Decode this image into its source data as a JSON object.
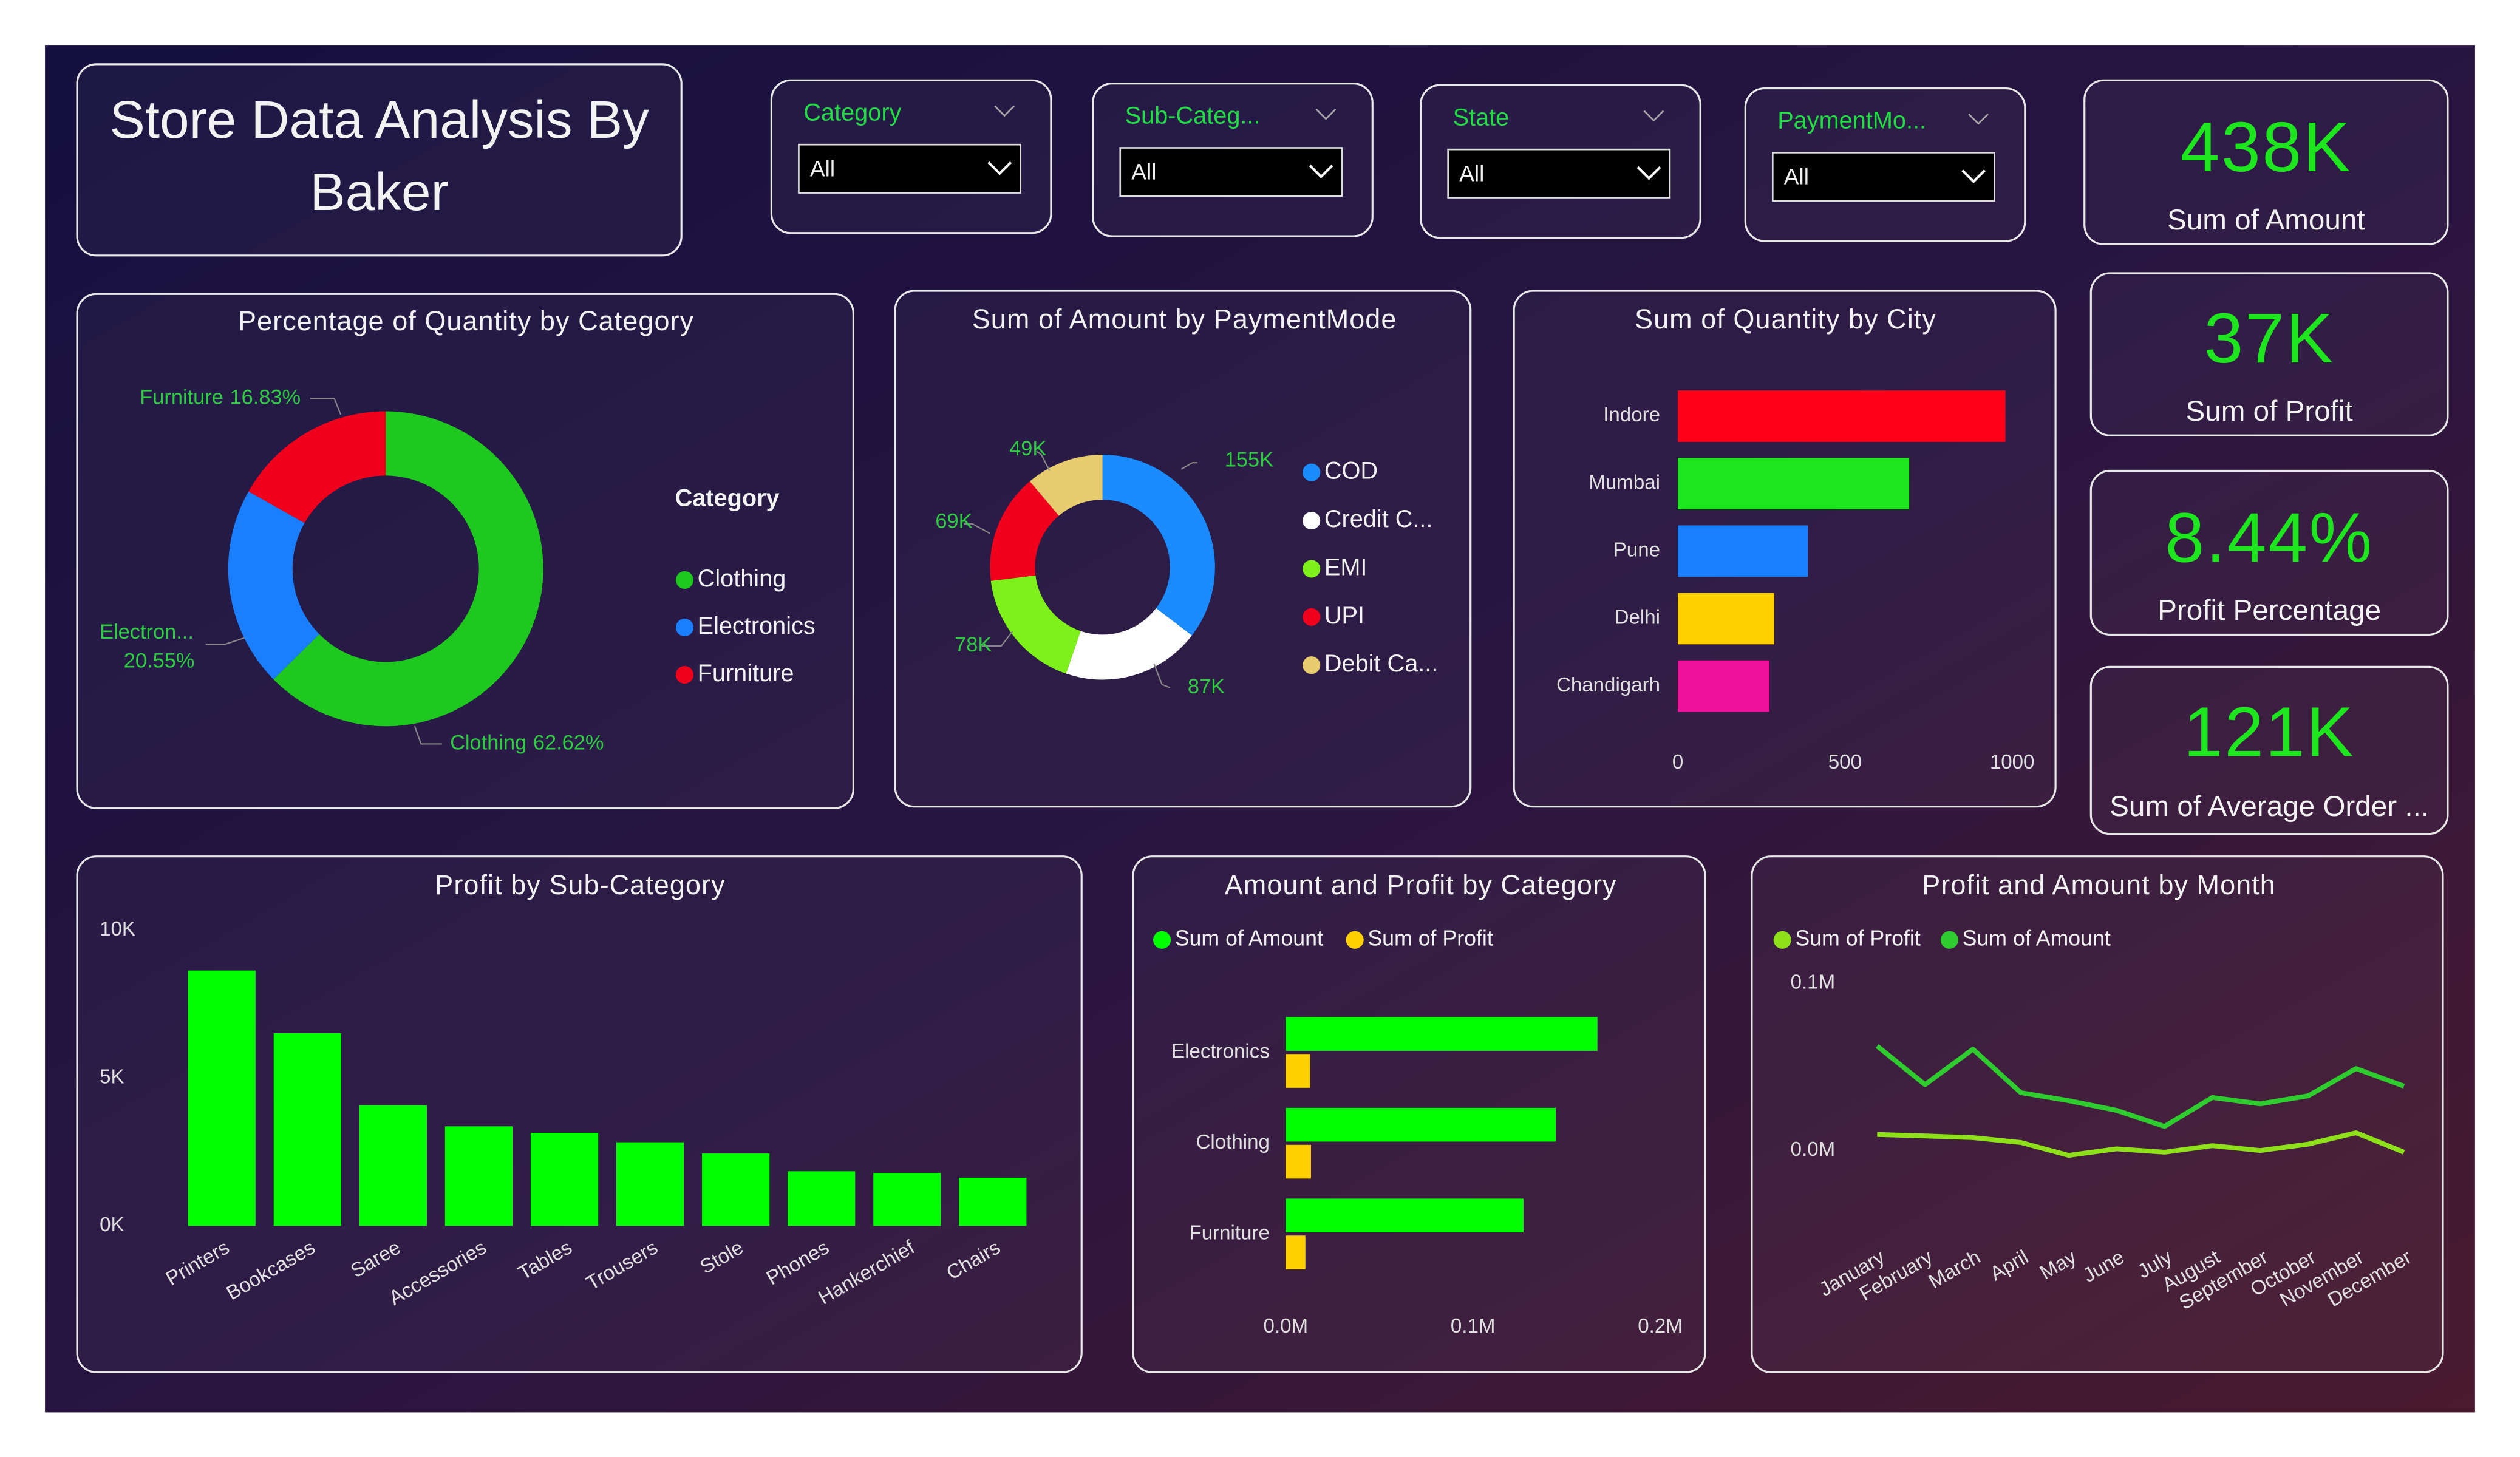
{
  "title_lines": [
    "Store Data Analysis By",
    "Baker"
  ],
  "filters": [
    {
      "label": "Category",
      "selected": "All"
    },
    {
      "label": "Sub-Categ...",
      "selected": "All"
    },
    {
      "label": "State",
      "selected": "All"
    },
    {
      "label": "PaymentMo...",
      "selected": "All"
    }
  ],
  "kpis": [
    {
      "value": "438K",
      "label": "Sum of Amount"
    },
    {
      "value": "37K",
      "label": "Sum of Profit"
    },
    {
      "value": "8.44%",
      "label": "Profit Percentage"
    },
    {
      "value": "121K",
      "label": "Sum of Average Order ..."
    }
  ],
  "chart_data": [
    {
      "type": "donut",
      "title": "Percentage of Quantity by Category",
      "categories": [
        "Clothing",
        "Electronics",
        "Furniture"
      ],
      "values": [
        62.62,
        20.55,
        16.83
      ],
      "label_categories": [
        "Clothing",
        "Electron...",
        "Furniture"
      ],
      "value_labels": [
        "62.62%",
        "20.55%",
        "16.83%"
      ],
      "colors": [
        "#1ec81e",
        "#1a7fff",
        "#f0001c"
      ],
      "legend_title": "Category"
    },
    {
      "type": "donut",
      "title": "Sum of Amount by PaymentMode",
      "categories": [
        "COD",
        "Credit C...",
        "EMI",
        "UPI",
        "Debit Ca..."
      ],
      "values": [
        155000,
        87000,
        78000,
        69000,
        49000
      ],
      "value_labels": [
        "155K",
        "87K",
        "78K",
        "69K",
        "49K"
      ],
      "colors": [
        "#1a8cff",
        "#ffffff",
        "#7ef01a",
        "#f0001c",
        "#e6cc6e"
      ]
    },
    {
      "type": "hbar",
      "title": "Sum of Quantity by City",
      "categories": [
        "Indore",
        "Mumbai",
        "Pune",
        "Delhi",
        "Chandigarh"
      ],
      "values": [
        980,
        692,
        389,
        288,
        274
      ],
      "colors": [
        "#ff0018",
        "#1ee61e",
        "#1a7fff",
        "#ffd000",
        "#f0119b"
      ],
      "xlim": [
        0,
        1000
      ],
      "xticks": [
        0,
        500,
        1000
      ]
    },
    {
      "type": "bar",
      "title": "Profit by Sub-Category",
      "categories": [
        "Printers",
        "Bookcases",
        "Saree",
        "Accessories",
        "Tables",
        "Trousers",
        "Stole",
        "Phones",
        "Hankerchief",
        "Chairs"
      ],
      "values": [
        8640,
        6520,
        4080,
        3370,
        3150,
        2830,
        2450,
        1850,
        1790,
        1630
      ],
      "color": "#00ff00",
      "ylim": [
        0,
        10000
      ],
      "yticks": [
        {
          "value": 0,
          "label": "0K"
        },
        {
          "value": 5000,
          "label": "5K"
        },
        {
          "value": 10000,
          "label": "10K"
        }
      ]
    },
    {
      "type": "grouped-hbar",
      "title": "Amount and Profit by Category",
      "categories": [
        "Electronics",
        "Clothing",
        "Furniture"
      ],
      "series": [
        {
          "name": "Sum of Amount",
          "color": "#00ff00",
          "values": [
            166500,
            144200,
            127000
          ]
        },
        {
          "name": "Sum of Profit",
          "color": "#ffd000",
          "values": [
            13000,
            13500,
            10500
          ]
        }
      ],
      "xlim": [
        0,
        200000
      ],
      "xticks": [
        {
          "value": 0,
          "label": "0.0M"
        },
        {
          "value": 100000,
          "label": "0.1M"
        },
        {
          "value": 200000,
          "label": "0.2M"
        }
      ]
    },
    {
      "type": "line",
      "title": "Profit and Amount by Month",
      "categories": [
        "January",
        "February",
        "March",
        "April",
        "May",
        "June",
        "July",
        "August",
        "September",
        "October",
        "November",
        "December"
      ],
      "series": [
        {
          "name": "Sum of Profit",
          "color": "#8ee01a",
          "values": [
            9600,
            8700,
            7700,
            4800,
            -2900,
            1000,
            -1000,
            2900,
            0,
            3800,
            10600,
            -1000
          ]
        },
        {
          "name": "Sum of Amount",
          "color": "#2ecc2e",
          "values": [
            62500,
            39400,
            60600,
            34600,
            29800,
            24000,
            14400,
            31700,
            27900,
            32700,
            49000,
            38500
          ]
        }
      ],
      "ylim": [
        -23000,
        111500
      ],
      "yticks": [
        {
          "value": 0,
          "label": "0.0M"
        },
        {
          "value": 100000,
          "label": "0.1M"
        }
      ]
    }
  ]
}
